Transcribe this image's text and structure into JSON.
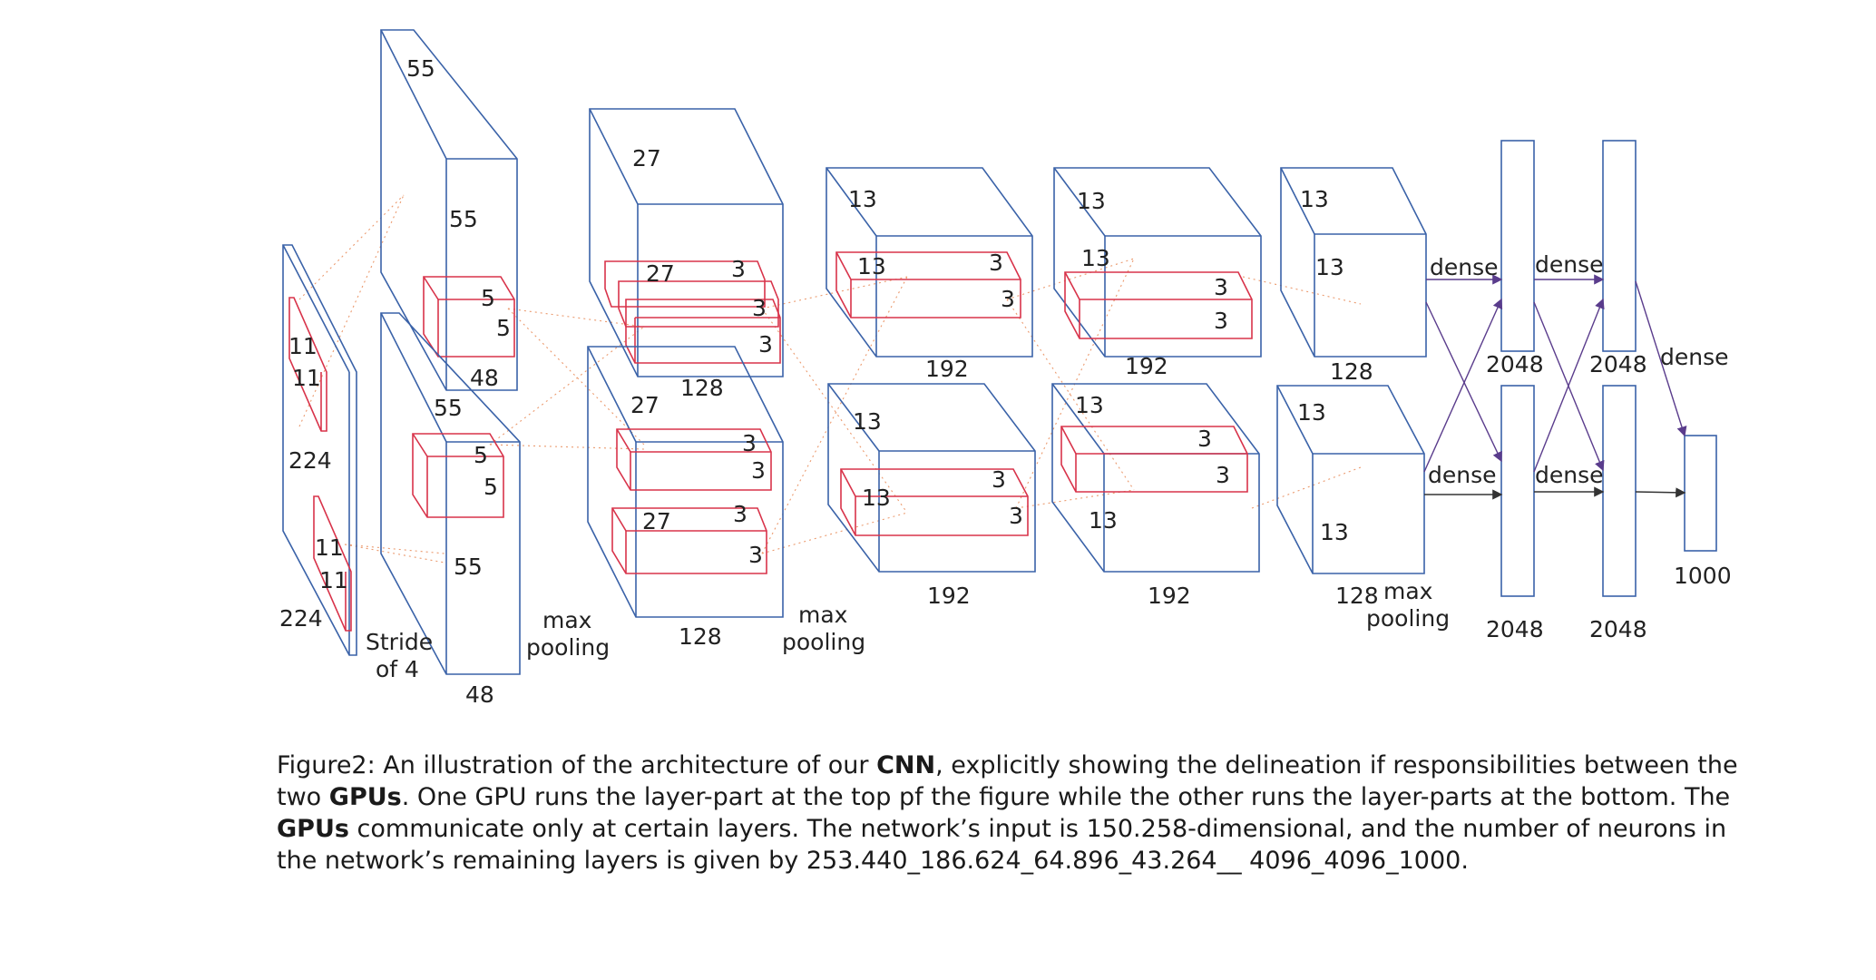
{
  "labels": {
    "in_side": "224",
    "in_bottom": "224",
    "k11a": "11",
    "k11b": "11",
    "k11c": "11",
    "k11d": "11",
    "c1_top_depth": "55",
    "c1_top_h": "55",
    "c1_top_w": "48",
    "c1_top_k1": "5",
    "c1_top_k2": "5",
    "c1_bot_depth": "55",
    "c1_bot_h": "55",
    "c1_bot_w": "48",
    "c1_bot_k1": "5",
    "c1_bot_k2": "5",
    "stride": "Stride",
    "stride2": "of 4",
    "mp1a": "max",
    "mp1b": "pooling",
    "c2_top_depth": "27",
    "c2_top_w": "128",
    "c2_top_k27": "27",
    "c2_top_k3a": "3",
    "c2_top_k3b": "3",
    "c2_top_k3c": "3",
    "c2_bot_depth": "27",
    "c2_bot_w": "128",
    "c2_bot_k27": "27",
    "c2_bot_k3a": "3",
    "c2_bot_k3b": "3",
    "c2_bot_k3c": "3",
    "c2_bot_k3d": "3",
    "mp2a": "max",
    "mp2b": "pooling",
    "c3_top_depth": "13",
    "c3_top_k13": "13",
    "c3_top_w": "192",
    "c3_top_k3a": "3",
    "c3_top_k3b": "3",
    "c3_bot_depth": "13",
    "c3_bot_k13": "13",
    "c3_bot_w": "192",
    "c3_bot_k3a": "3",
    "c3_bot_k3b": "3",
    "c4_top_depth": "13",
    "c4_top_k13": "13",
    "c4_top_w": "192",
    "c4_top_k3a": "3",
    "c4_top_k3b": "3",
    "c4_bot_depth": "13",
    "c4_bot_k13": "13",
    "c4_bot_w": "192",
    "c4_bot_k3a": "3",
    "c4_bot_k3b": "3",
    "c5_top_depth": "13",
    "c5_top_h": "13",
    "c5_top_w": "128",
    "c5_bot_depth": "13",
    "c5_bot_h": "13",
    "c5_bot_w": "128",
    "mp3a": "max",
    "mp3b": "pooling",
    "dense1_top": "dense",
    "dense1_bot": "dense",
    "dense2_top": "dense",
    "dense2_bot": "dense",
    "dense3": "dense",
    "fc1_top": "2048",
    "fc1_bot": "2048",
    "fc2_top": "2048",
    "fc2_bot": "2048",
    "out": "1000"
  },
  "caption": {
    "p1": "Figure2: An illustration of the architecture of our ",
    "b1": "CNN",
    "p2": ", explicitly showing the delineation if responsibilities between the two ",
    "b2": "GPUs",
    "p3": ". One GPU runs the layer-part at the top pf the figure while the other runs the layer-parts at the bottom. The ",
    "b3": "GPUs",
    "p4": " communicate only at certain layers. The network’s input is 150.258-dimensional, and the number of neurons in the network’s remaining layers is given by 253.440_186.624_64.896_43.264__ 4096_4096_1000."
  },
  "colors": {
    "layer_outline": "#3a62a8",
    "kernel": "#d8334a",
    "connection": "#eb9a6e",
    "arrow": "#5a3c8c"
  }
}
